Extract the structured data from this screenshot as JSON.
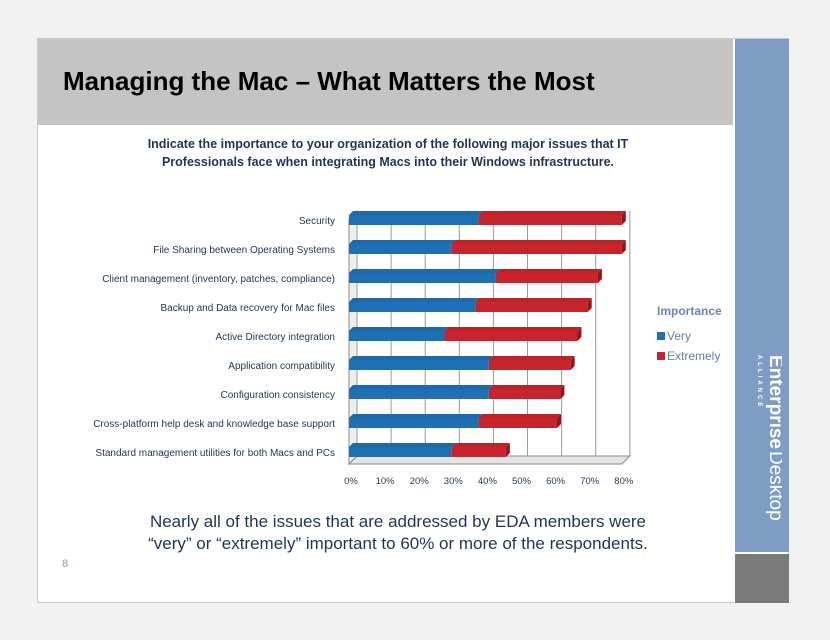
{
  "slide": {
    "title": "Managing the Mac – What Matters the Most",
    "question_line1": "Indicate the importance to your organization of the following major issues that IT",
    "question_line2": "Professionals face when integrating Macs into their Windows infrastructure.",
    "caption_line1": "Nearly all of the issues that are addressed by EDA members were",
    "caption_line2": "“very” or “extremely” important to 60% or more of the respondents.",
    "page_number": "8",
    "brand": {
      "word1": "Enterprise",
      "word2": "Desktop",
      "word3": "ALLIANCE"
    }
  },
  "colors": {
    "very": "#1f6fb3",
    "extremely": "#c8242b",
    "panel": "#7f9cc4",
    "title_bar": "#c4c4c4"
  },
  "chart_data": {
    "type": "bar",
    "orientation": "horizontal",
    "stacked": true,
    "legend_title": "Importance",
    "legend_position": "right",
    "categories": [
      "Security",
      "File Sharing between Operating Systems",
      "Client management  (inventory, patches, compliance)",
      "Backup and Data recovery for Mac files",
      "Active Directory integration",
      "Application compatibility",
      "Configuration consistency",
      "Cross-platform help desk and knowledge base support",
      "Standard management utilities for both Macs and PCs"
    ],
    "series": [
      {
        "name": "Very",
        "values": [
          38,
          30,
          43,
          37,
          28,
          41,
          41,
          38,
          30
        ]
      },
      {
        "name": "Extremely",
        "values": [
          42,
          50,
          30,
          33,
          39,
          24,
          21,
          23,
          16
        ]
      }
    ],
    "x_ticks": [
      "0%",
      "10%",
      "20%",
      "30%",
      "40%",
      "50%",
      "60%",
      "70%",
      "80%"
    ],
    "xlim": [
      0,
      80
    ],
    "grid": true
  }
}
